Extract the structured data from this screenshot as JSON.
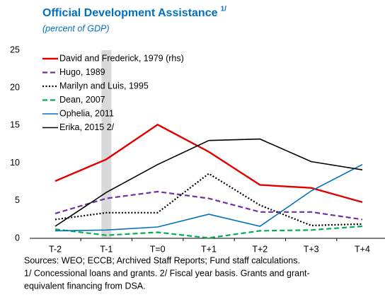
{
  "chart_data": {
    "type": "line",
    "title": "Official Development Assistance",
    "title_note": "1/",
    "subtitle": "(percent of GDP)",
    "categories": [
      "T-2",
      "T-1",
      "T=0",
      "T+1",
      "T+2",
      "T+3",
      "T+4"
    ],
    "highlight": "T-1",
    "ylim": [
      0,
      25
    ],
    "yticks": [
      0,
      5,
      10,
      15,
      20,
      25
    ],
    "grid": false,
    "legend": "upper left",
    "series": [
      {
        "name": "David and Frederick, 1979 (rhs)",
        "color": "#e00000",
        "dash": "solid",
        "values": [
          7.6,
          10.5,
          15.1,
          11.5,
          7.1,
          6.7,
          4.8
        ]
      },
      {
        "name": "Hugo, 1989",
        "color": "#7030a0",
        "dash": "dashed",
        "values": [
          3.3,
          5.3,
          6.2,
          5.3,
          3.5,
          3.5,
          2.5
        ]
      },
      {
        "name": "Marilyn and Luis, 1995",
        "color": "#000000",
        "dash": "dotted",
        "values": [
          2.5,
          3.4,
          3.4,
          8.6,
          4.4,
          1.7,
          1.9
        ]
      },
      {
        "name": "Dean, 2007",
        "color": "#00b050",
        "dash": "dashed",
        "values": [
          1.2,
          0.4,
          0.8,
          0.05,
          1.0,
          1.1,
          1.6
        ]
      },
      {
        "name": "Ophelia, 2011",
        "color": "#0070c0",
        "dash": "solid",
        "values": [
          1.0,
          1.1,
          1.5,
          3.2,
          1.6,
          6.3,
          9.8
        ]
      },
      {
        "name": "Erika, 2015 2/",
        "color": "#000000",
        "dash": "solid",
        "values": [
          1.6,
          6.1,
          9.8,
          13.0,
          13.2,
          10.2,
          9.1
        ]
      }
    ],
    "notes": [
      "Sources: WEO; ECCB; Archived Staff Reports; Fund staff calculations.",
      "1/ Concessional loans and grants. 2/ Fiscal year basis. Grants and grant-",
      "equivalent financing from DSA."
    ]
  }
}
